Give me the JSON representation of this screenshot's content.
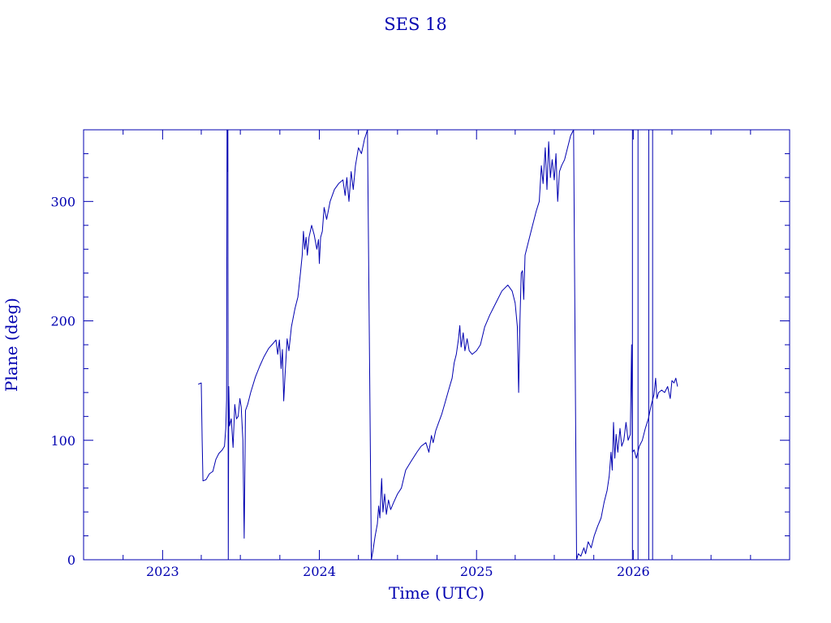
{
  "colors": {
    "ink": "#0000b0",
    "background": "#ffffff"
  },
  "chart_data": {
    "type": "line",
    "title": "SES 18",
    "xlabel": "Time (UTC)",
    "ylabel": "Plane (deg)",
    "xlim": [
      "2022-07-01",
      "2026-12-31"
    ],
    "ylim": [
      0,
      360
    ],
    "xticks": [
      "2023",
      "2024",
      "2025",
      "2026"
    ],
    "yticks": [
      "0",
      "100",
      "200",
      "300"
    ],
    "grid": false,
    "legend": "none",
    "series": [
      {
        "color": "#0000b0",
        "points": [
          [
            "2023-03-25",
            147
          ],
          [
            "2023-04-01",
            148
          ],
          [
            "2023-04-03",
            100
          ],
          [
            "2023-04-05",
            66
          ],
          [
            "2023-04-12",
            67
          ],
          [
            "2023-04-20",
            72
          ],
          [
            "2023-04-28",
            74
          ],
          [
            "2023-05-05",
            84
          ],
          [
            "2023-05-12",
            89
          ],
          [
            "2023-05-20",
            92
          ],
          [
            "2023-05-25",
            95
          ],
          [
            "2023-05-28",
            110
          ],
          [
            "2023-05-30",
            134
          ],
          [
            "2023-05-31",
            360
          ],
          [
            "2023-06-01",
            325
          ],
          [
            "2023-06-02",
            360
          ],
          [
            "2023-06-03",
            0
          ],
          [
            "2023-06-04",
            145
          ],
          [
            "2023-06-06",
            112
          ],
          [
            "2023-06-10",
            118
          ],
          [
            "2023-06-14",
            94
          ],
          [
            "2023-06-18",
            130
          ],
          [
            "2023-06-22",
            118
          ],
          [
            "2023-06-26",
            120
          ],
          [
            "2023-06-30",
            135
          ],
          [
            "2023-07-03",
            128
          ],
          [
            "2023-07-07",
            100
          ],
          [
            "2023-07-10",
            18
          ],
          [
            "2023-07-13",
            125
          ],
          [
            "2023-07-18",
            130
          ],
          [
            "2023-07-25",
            140
          ],
          [
            "2023-08-05",
            153
          ],
          [
            "2023-08-15",
            162
          ],
          [
            "2023-08-25",
            170
          ],
          [
            "2023-09-05",
            177
          ],
          [
            "2023-09-15",
            181
          ],
          [
            "2023-09-22",
            184
          ],
          [
            "2023-09-26",
            172
          ],
          [
            "2023-09-30",
            184
          ],
          [
            "2023-10-04",
            160
          ],
          [
            "2023-10-07",
            176
          ],
          [
            "2023-10-10",
            133
          ],
          [
            "2023-10-14",
            160
          ],
          [
            "2023-10-18",
            185
          ],
          [
            "2023-10-22",
            175
          ],
          [
            "2023-10-28",
            195
          ],
          [
            "2023-11-05",
            210
          ],
          [
            "2023-11-12",
            220
          ],
          [
            "2023-11-18",
            240
          ],
          [
            "2023-11-22",
            255
          ],
          [
            "2023-11-25",
            275
          ],
          [
            "2023-11-28",
            260
          ],
          [
            "2023-12-01",
            270
          ],
          [
            "2023-12-04",
            255
          ],
          [
            "2023-12-08",
            270
          ],
          [
            "2023-12-14",
            280
          ],
          [
            "2023-12-20",
            272
          ],
          [
            "2023-12-26",
            260
          ],
          [
            "2023-12-30",
            268
          ],
          [
            "2024-01-01",
            248
          ],
          [
            "2024-01-04",
            270
          ],
          [
            "2024-01-08",
            275
          ],
          [
            "2024-01-12",
            295
          ],
          [
            "2024-01-18",
            285
          ],
          [
            "2024-01-26",
            300
          ],
          [
            "2024-02-05",
            310
          ],
          [
            "2024-02-15",
            315
          ],
          [
            "2024-02-25",
            318
          ],
          [
            "2024-03-01",
            305
          ],
          [
            "2024-03-05",
            320
          ],
          [
            "2024-03-10",
            300
          ],
          [
            "2024-03-15",
            325
          ],
          [
            "2024-03-20",
            310
          ],
          [
            "2024-03-25",
            330
          ],
          [
            "2024-04-01",
            345
          ],
          [
            "2024-04-08",
            340
          ],
          [
            "2024-04-15",
            352
          ],
          [
            "2024-04-22",
            360
          ],
          [
            "2024-05-01",
            0
          ],
          [
            "2024-05-05",
            8
          ],
          [
            "2024-05-10",
            20
          ],
          [
            "2024-05-15",
            30
          ],
          [
            "2024-05-18",
            45
          ],
          [
            "2024-05-21",
            35
          ],
          [
            "2024-05-25",
            68
          ],
          [
            "2024-05-28",
            40
          ],
          [
            "2024-06-01",
            55
          ],
          [
            "2024-06-05",
            38
          ],
          [
            "2024-06-10",
            50
          ],
          [
            "2024-06-15",
            42
          ],
          [
            "2024-06-22",
            48
          ],
          [
            "2024-07-01",
            55
          ],
          [
            "2024-07-10",
            60
          ],
          [
            "2024-07-20",
            75
          ],
          [
            "2024-08-01",
            82
          ],
          [
            "2024-08-15",
            90
          ],
          [
            "2024-08-25",
            95
          ],
          [
            "2024-09-05",
            98
          ],
          [
            "2024-09-12",
            90
          ],
          [
            "2024-09-18",
            104
          ],
          [
            "2024-09-22",
            98
          ],
          [
            "2024-09-28",
            108
          ],
          [
            "2024-10-05",
            115
          ],
          [
            "2024-10-12",
            122
          ],
          [
            "2024-10-20",
            132
          ],
          [
            "2024-10-28",
            142
          ],
          [
            "2024-11-05",
            152
          ],
          [
            "2024-11-10",
            165
          ],
          [
            "2024-11-15",
            172
          ],
          [
            "2024-11-20",
            185
          ],
          [
            "2024-11-23",
            196
          ],
          [
            "2024-11-26",
            178
          ],
          [
            "2024-12-01",
            190
          ],
          [
            "2024-12-05",
            175
          ],
          [
            "2024-12-10",
            185
          ],
          [
            "2024-12-15",
            175
          ],
          [
            "2024-12-22",
            172
          ],
          [
            "2025-01-01",
            175
          ],
          [
            "2025-01-10",
            180
          ],
          [
            "2025-01-20",
            195
          ],
          [
            "2025-02-01",
            205
          ],
          [
            "2025-02-15",
            215
          ],
          [
            "2025-03-01",
            225
          ],
          [
            "2025-03-15",
            230
          ],
          [
            "2025-03-25",
            225
          ],
          [
            "2025-04-01",
            215
          ],
          [
            "2025-04-06",
            195
          ],
          [
            "2025-04-09",
            140
          ],
          [
            "2025-04-12",
            200
          ],
          [
            "2025-04-15",
            240
          ],
          [
            "2025-04-18",
            242
          ],
          [
            "2025-04-21",
            218
          ],
          [
            "2025-04-24",
            255
          ],
          [
            "2025-05-01",
            265
          ],
          [
            "2025-05-10",
            278
          ],
          [
            "2025-05-20",
            292
          ],
          [
            "2025-05-27",
            300
          ],
          [
            "2025-06-01",
            330
          ],
          [
            "2025-06-05",
            315
          ],
          [
            "2025-06-10",
            345
          ],
          [
            "2025-06-14",
            310
          ],
          [
            "2025-06-18",
            350
          ],
          [
            "2025-06-22",
            320
          ],
          [
            "2025-06-26",
            335
          ],
          [
            "2025-07-01",
            318
          ],
          [
            "2025-07-05",
            340
          ],
          [
            "2025-07-09",
            300
          ],
          [
            "2025-07-13",
            325
          ],
          [
            "2025-07-18",
            330
          ],
          [
            "2025-07-25",
            335
          ],
          [
            "2025-08-01",
            345
          ],
          [
            "2025-08-08",
            355
          ],
          [
            "2025-08-15",
            360
          ],
          [
            "2025-08-22",
            0
          ],
          [
            "2025-08-26",
            5
          ],
          [
            "2025-09-01",
            3
          ],
          [
            "2025-09-08",
            10
          ],
          [
            "2025-09-12",
            5
          ],
          [
            "2025-09-18",
            15
          ],
          [
            "2025-09-25",
            10
          ],
          [
            "2025-10-02",
            20
          ],
          [
            "2025-10-10",
            28
          ],
          [
            "2025-10-18",
            35
          ],
          [
            "2025-10-25",
            48
          ],
          [
            "2025-11-01",
            58
          ],
          [
            "2025-11-06",
            70
          ],
          [
            "2025-11-10",
            90
          ],
          [
            "2025-11-13",
            75
          ],
          [
            "2025-11-16",
            115
          ],
          [
            "2025-11-19",
            85
          ],
          [
            "2025-11-22",
            105
          ],
          [
            "2025-11-26",
            90
          ],
          [
            "2025-12-01",
            110
          ],
          [
            "2025-12-05",
            95
          ],
          [
            "2025-12-10",
            100
          ],
          [
            "2025-12-15",
            115
          ],
          [
            "2025-12-20",
            100
          ],
          [
            "2025-12-25",
            105
          ],
          [
            "2025-12-28",
            180
          ],
          [
            "2025-12-30",
            90
          ],
          [
            "2026-01-03",
            92
          ],
          [
            "2026-01-08",
            85
          ],
          [
            "2026-01-15",
            95
          ],
          [
            "2026-01-22",
            100
          ],
          [
            "2026-01-29",
            110
          ],
          [
            "2026-02-05",
            118
          ],
          [
            "2026-02-12",
            130
          ],
          [
            "2026-02-18",
            138
          ],
          [
            "2026-02-22",
            152
          ],
          [
            "2026-02-25",
            135
          ],
          [
            "2026-03-01",
            140
          ],
          [
            "2026-03-08",
            142
          ],
          [
            "2026-03-15",
            140
          ],
          [
            "2026-03-22",
            145
          ],
          [
            "2026-03-28",
            135
          ],
          [
            "2026-04-01",
            150
          ],
          [
            "2026-04-06",
            148
          ],
          [
            "2026-04-10",
            152
          ],
          [
            "2026-04-14",
            145
          ]
        ]
      }
    ],
    "markers": [
      {
        "x": "2025-12-30",
        "y": [
          0,
          360
        ]
      },
      {
        "x": "2026-01-12",
        "y": [
          0,
          360
        ]
      },
      {
        "x": "2026-02-06",
        "y": [
          0,
          360
        ]
      },
      {
        "x": "2026-02-15",
        "y": [
          0,
          360
        ]
      }
    ]
  }
}
